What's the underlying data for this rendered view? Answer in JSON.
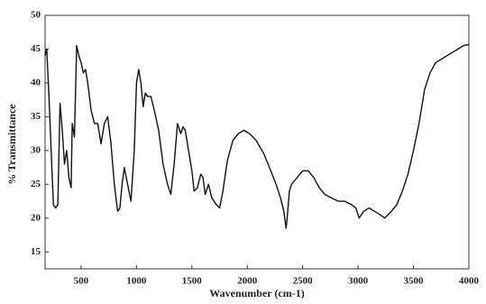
{
  "chart_data": {
    "type": "line",
    "x_label": "Wavenumber (cm-1)",
    "y_label": "% Transmittance",
    "xlim": [
      175,
      4000
    ],
    "ylim": [
      12.5,
      50
    ],
    "xticks": [
      500,
      1000,
      1500,
      2000,
      2500,
      3000,
      3500,
      4000
    ],
    "yticks": [
      15,
      20,
      25,
      30,
      35,
      40,
      45,
      50
    ],
    "color": "#111111",
    "grid": false,
    "x": [
      175,
      190,
      210,
      230,
      250,
      270,
      290,
      310,
      330,
      350,
      370,
      390,
      410,
      420,
      440,
      460,
      480,
      500,
      520,
      540,
      560,
      590,
      620,
      650,
      680,
      710,
      740,
      770,
      800,
      830,
      850,
      870,
      890,
      920,
      950,
      980,
      1000,
      1020,
      1040,
      1060,
      1080,
      1100,
      1130,
      1160,
      1200,
      1240,
      1280,
      1310,
      1340,
      1370,
      1400,
      1420,
      1440,
      1470,
      1500,
      1520,
      1550,
      1580,
      1600,
      1620,
      1650,
      1680,
      1720,
      1750,
      1780,
      1820,
      1870,
      1920,
      1970,
      2020,
      2080,
      2150,
      2200,
      2260,
      2300,
      2330,
      2350,
      2360,
      2380,
      2400,
      2450,
      2500,
      2550,
      2600,
      2650,
      2700,
      2760,
      2820,
      2880,
      2940,
      2980,
      3010,
      3050,
      3100,
      3150,
      3200,
      3240,
      3300,
      3350,
      3400,
      3450,
      3500,
      3550,
      3600,
      3650,
      3700,
      3750,
      3800,
      3850,
      3900,
      3950,
      4000
    ],
    "values": [
      44,
      45,
      38,
      30,
      22,
      21.5,
      22,
      37,
      33,
      28,
      30,
      26,
      24.5,
      34,
      32,
      45.5,
      44,
      43,
      41.5,
      42,
      40,
      36,
      34,
      34,
      31,
      34,
      35,
      31,
      25,
      21,
      21.5,
      25,
      27.5,
      25,
      22.5,
      30,
      40,
      42,
      40,
      36.5,
      38.5,
      38,
      38,
      36,
      33,
      28,
      25,
      23.5,
      28,
      34,
      32.5,
      33.5,
      33,
      30,
      27,
      24,
      24.5,
      26.5,
      26,
      23.5,
      25,
      23,
      22,
      21.5,
      24,
      28.5,
      31.5,
      32.5,
      33,
      32.5,
      31.5,
      29.5,
      27.5,
      25,
      23,
      21,
      18.5,
      20,
      24,
      25,
      26,
      27,
      27,
      26,
      24.5,
      23.5,
      23,
      22.5,
      22.5,
      22,
      21.5,
      20,
      21,
      21.5,
      21,
      20.5,
      20,
      21,
      22,
      24,
      26.5,
      30,
      34,
      39,
      41.5,
      43,
      43.5,
      44,
      44.5,
      45,
      45.5,
      45.7
    ]
  }
}
